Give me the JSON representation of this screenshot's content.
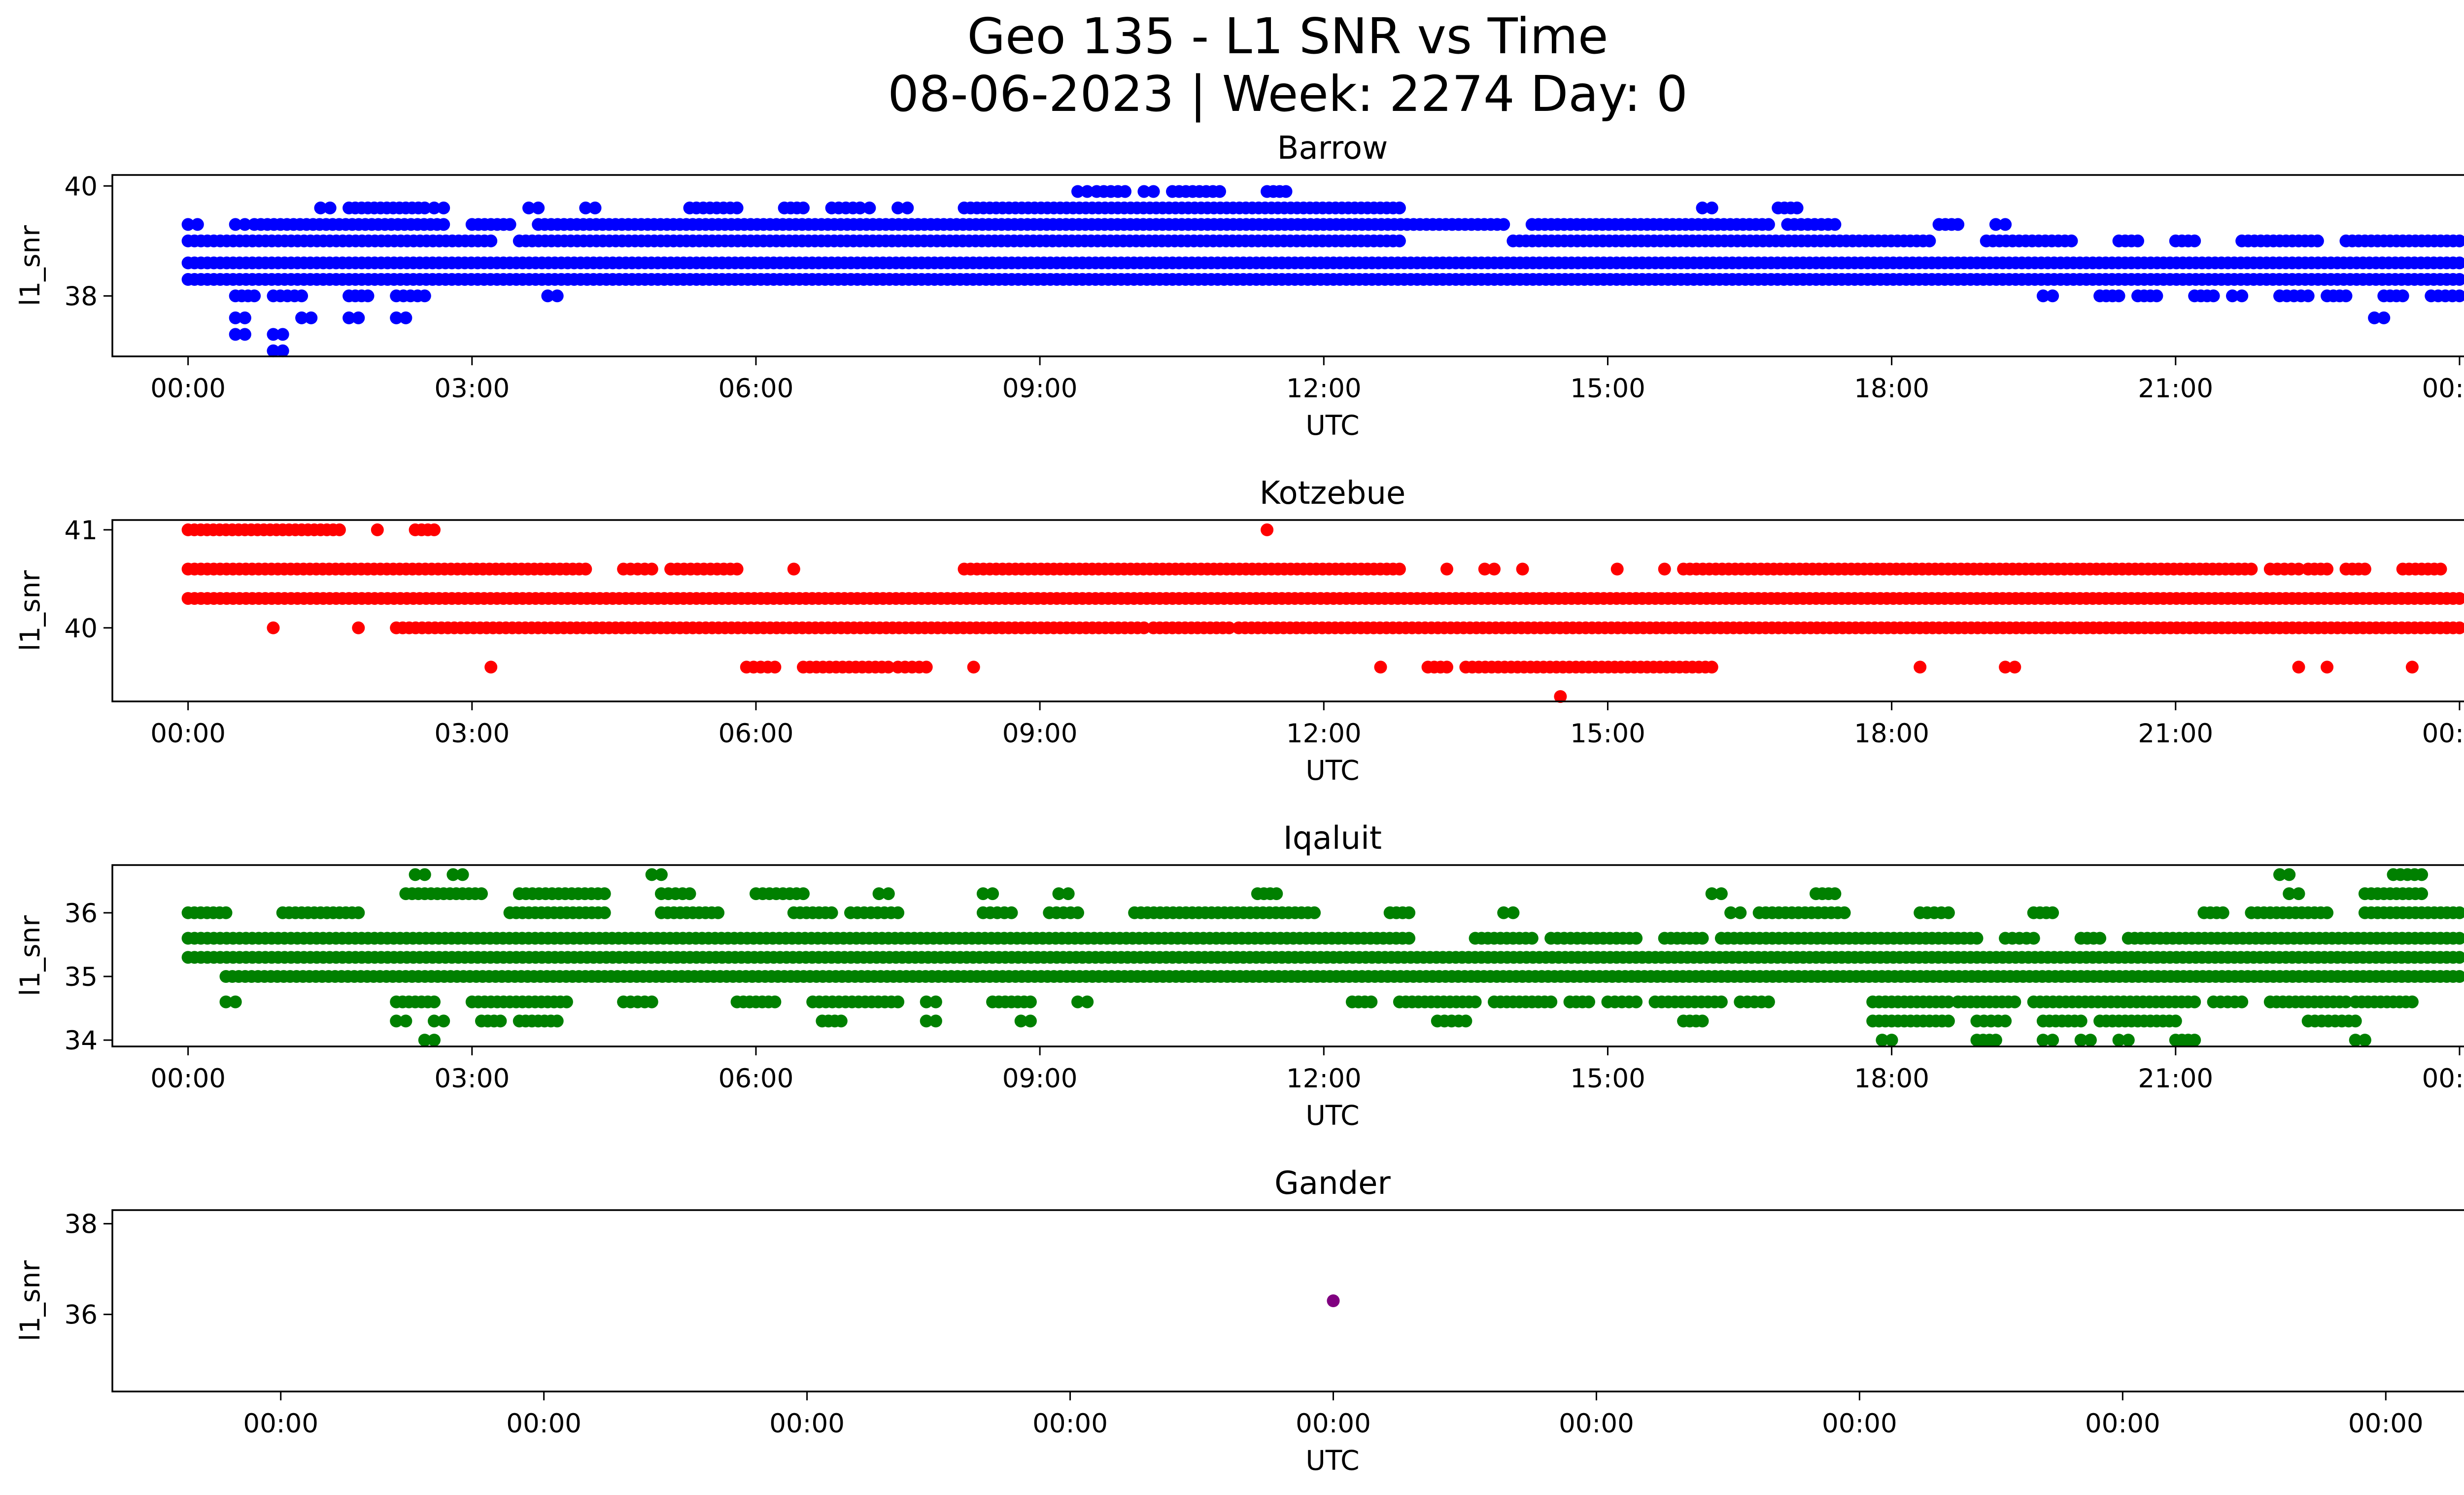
{
  "figure": {
    "title_line1": "Geo 135 - L1 SNR vs Time",
    "title_line2": "08-06-2023 | Week: 2274 Day: 0"
  },
  "chart_data": [
    {
      "type": "scatter",
      "title": "Barrow",
      "xlabel": "UTC",
      "ylabel": "l1_snr",
      "color": "#0000ff",
      "xlim": [
        -0.8,
        25.0
      ],
      "ylim": [
        36.9,
        40.2
      ],
      "xticks": [
        0,
        3,
        6,
        9,
        12,
        15,
        18,
        21,
        24
      ],
      "xticklabels": [
        "00:00",
        "03:00",
        "06:00",
        "09:00",
        "12:00",
        "15:00",
        "18:00",
        "21:00",
        "00:00"
      ],
      "yticks": [
        38,
        40
      ],
      "yticklabels": [
        "38",
        "40"
      ],
      "series": [
        {
          "y": 38.3,
          "segments": [
            [
              0.0,
              24.0
            ]
          ]
        },
        {
          "y": 38.6,
          "segments": [
            [
              0.0,
              24.0
            ]
          ]
        },
        {
          "y": 39.0,
          "segments": [
            [
              0.0,
              3.2
            ],
            [
              3.5,
              12.8
            ],
            [
              14.0,
              18.4
            ],
            [
              19.0,
              19.9
            ],
            [
              20.4,
              20.6
            ],
            [
              21.0,
              21.2
            ],
            [
              21.7,
              22.5
            ],
            [
              22.8,
              24.0
            ]
          ]
        },
        {
          "y": 38.0,
          "segments": [
            [
              0.5,
              0.7
            ],
            [
              0.9,
              1.2
            ],
            [
              1.7,
              1.9
            ],
            [
              2.2,
              2.5
            ],
            [
              3.8,
              3.9
            ],
            [
              19.6,
              19.7
            ],
            [
              20.2,
              20.4
            ],
            [
              20.6,
              20.8
            ],
            [
              21.2,
              21.4
            ],
            [
              21.6,
              21.7
            ],
            [
              22.1,
              22.4
            ],
            [
              22.6,
              22.8
            ],
            [
              23.2,
              23.4
            ],
            [
              23.7,
              24.0
            ]
          ]
        },
        {
          "y": 39.3,
          "segments": [
            [
              0.0,
              0.1
            ],
            [
              0.5,
              0.6
            ],
            [
              0.7,
              2.7
            ],
            [
              3.0,
              3.4
            ],
            [
              3.7,
              13.9
            ],
            [
              14.2,
              16.7
            ],
            [
              16.9,
              17.4
            ],
            [
              18.5,
              18.7
            ],
            [
              19.1,
              19.2
            ]
          ]
        },
        {
          "y": 39.6,
          "segments": [
            [
              1.4,
              1.5
            ],
            [
              1.7,
              2.5
            ],
            [
              2.6,
              2.7
            ],
            [
              3.6,
              3.7
            ],
            [
              4.2,
              4.3
            ],
            [
              5.3,
              5.8
            ],
            [
              6.3,
              6.5
            ],
            [
              6.8,
              7.1
            ],
            [
              7.1,
              7.2
            ],
            [
              7.5,
              7.6
            ],
            [
              8.2,
              12.8
            ],
            [
              16.0,
              16.1
            ],
            [
              16.8,
              17.0
            ]
          ]
        },
        {
          "y": 39.9,
          "segments": [
            [
              9.4,
              9.5
            ],
            [
              9.6,
              9.9
            ],
            [
              10.1,
              10.2
            ],
            [
              10.4,
              10.9
            ],
            [
              11.4,
              11.6
            ]
          ]
        },
        {
          "y": 37.6,
          "segments": [
            [
              0.5,
              0.6
            ],
            [
              1.2,
              1.3
            ],
            [
              1.7,
              1.8
            ],
            [
              2.2,
              2.3
            ],
            [
              23.1,
              23.2
            ]
          ]
        },
        {
          "y": 37.3,
          "segments": [
            [
              0.5,
              0.6
            ],
            [
              0.9,
              1.0
            ]
          ]
        },
        {
          "y": 37.0,
          "segments": [
            [
              0.9,
              1.0
            ]
          ]
        }
      ]
    },
    {
      "type": "scatter",
      "title": "Kotzebue",
      "xlabel": "UTC",
      "ylabel": "l1_snr",
      "color": "#ff0000",
      "xlim": [
        -0.8,
        25.0
      ],
      "ylim": [
        39.25,
        41.1
      ],
      "xticks": [
        0,
        3,
        6,
        9,
        12,
        15,
        18,
        21,
        24
      ],
      "xticklabels": [
        "00:00",
        "03:00",
        "06:00",
        "09:00",
        "12:00",
        "15:00",
        "18:00",
        "21:00",
        "00:00"
      ],
      "yticks": [
        40,
        41
      ],
      "yticklabels": [
        "40",
        "41"
      ],
      "series": [
        {
          "y": 40.3,
          "segments": [
            [
              0.0,
              24.0
            ]
          ]
        },
        {
          "y": 40.0,
          "segments": [
            [
              2.2,
              10.1
            ],
            [
              10.2,
              11.0
            ],
            [
              11.1,
              24.0
            ],
            [
              0.9,
              0.9
            ],
            [
              1.8,
              1.8
            ]
          ]
        },
        {
          "y": 40.6,
          "segments": [
            [
              0.0,
              4.2
            ],
            [
              4.6,
              4.9
            ],
            [
              5.1,
              5.8
            ],
            [
              6.4,
              6.4
            ],
            [
              8.2,
              12.8
            ],
            [
              13.3,
              13.3
            ],
            [
              13.7,
              13.8
            ],
            [
              14.1,
              14.1
            ],
            [
              15.1,
              15.1
            ],
            [
              15.6,
              15.6
            ],
            [
              15.8,
              21.8
            ],
            [
              22.0,
              22.3
            ],
            [
              22.4,
              22.6
            ],
            [
              22.8,
              23.0
            ],
            [
              23.4,
              23.8
            ]
          ]
        },
        {
          "y": 41.0,
          "segments": [
            [
              0.0,
              1.6
            ],
            [
              2.0,
              2.0
            ],
            [
              2.4,
              2.6
            ],
            [
              11.4,
              11.4
            ]
          ]
        },
        {
          "y": 39.6,
          "segments": [
            [
              3.2,
              3.2
            ],
            [
              5.9,
              6.2
            ],
            [
              6.5,
              7.4
            ],
            [
              7.5,
              7.8
            ],
            [
              8.3,
              8.3
            ],
            [
              12.6,
              12.6
            ],
            [
              13.1,
              13.3
            ],
            [
              13.5,
              16.1
            ],
            [
              18.3,
              18.3
            ],
            [
              19.2,
              19.3
            ],
            [
              22.3,
              22.3
            ],
            [
              22.6,
              22.6
            ],
            [
              23.5,
              23.5
            ]
          ]
        },
        {
          "y": 39.3,
          "segments": [
            [
              14.5,
              14.5
            ]
          ]
        }
      ]
    },
    {
      "type": "scatter",
      "title": "Iqaluit",
      "xlabel": "UTC",
      "ylabel": "l1_snr",
      "color": "#008000",
      "xlim": [
        -0.8,
        25.0
      ],
      "ylim": [
        33.9,
        36.75
      ],
      "xticks": [
        0,
        3,
        6,
        9,
        12,
        15,
        18,
        21,
        24
      ],
      "xticklabels": [
        "00:00",
        "03:00",
        "06:00",
        "09:00",
        "12:00",
        "15:00",
        "18:00",
        "21:00",
        "00:00"
      ],
      "yticks": [
        34,
        35,
        36
      ],
      "yticklabels": [
        "34",
        "35",
        "36"
      ],
      "series": [
        {
          "y": 35.3,
          "segments": [
            [
              0.0,
              24.0
            ]
          ]
        },
        {
          "y": 35.6,
          "segments": [
            [
              0.0,
              12.9
            ],
            [
              13.6,
              14.2
            ],
            [
              14.4,
              15.3
            ],
            [
              15.6,
              16.0
            ],
            [
              16.2,
              18.9
            ],
            [
              19.2,
              19.5
            ],
            [
              20.0,
              20.2
            ],
            [
              20.5,
              24.0
            ]
          ]
        },
        {
          "y": 35.0,
          "segments": [
            [
              0.4,
              24.0
            ]
          ]
        },
        {
          "y": 36.0,
          "segments": [
            [
              0.0,
              0.4
            ],
            [
              1.0,
              1.8
            ],
            [
              3.4,
              4.4
            ],
            [
              5.0,
              5.6
            ],
            [
              6.4,
              6.8
            ],
            [
              7.0,
              7.5
            ],
            [
              8.4,
              8.7
            ],
            [
              9.1,
              9.4
            ],
            [
              10.0,
              11.9
            ],
            [
              12.7,
              12.9
            ],
            [
              13.9,
              14.0
            ],
            [
              16.3,
              16.4
            ],
            [
              16.6,
              17.5
            ],
            [
              18.3,
              18.6
            ],
            [
              19.5,
              19.7
            ],
            [
              21.3,
              21.5
            ],
            [
              21.8,
              22.6
            ],
            [
              23.0,
              24.0
            ]
          ]
        },
        {
          "y": 36.3,
          "segments": [
            [
              2.3,
              3.1
            ],
            [
              3.5,
              4.4
            ],
            [
              5.0,
              5.3
            ],
            [
              6.0,
              6.5
            ],
            [
              7.3,
              7.4
            ],
            [
              8.4,
              8.5
            ],
            [
              9.2,
              9.3
            ],
            [
              11.3,
              11.5
            ],
            [
              16.1,
              16.2
            ],
            [
              17.2,
              17.4
            ],
            [
              22.2,
              22.3
            ],
            [
              23.0,
              23.6
            ]
          ]
        },
        {
          "y": 36.6,
          "segments": [
            [
              2.4,
              2.5
            ],
            [
              2.8,
              2.9
            ],
            [
              4.9,
              5.0
            ],
            [
              22.1,
              22.2
            ],
            [
              23.3,
              23.6
            ]
          ]
        },
        {
          "y": 34.6,
          "segments": [
            [
              0.4,
              0.5
            ],
            [
              2.2,
              2.6
            ],
            [
              3.0,
              4.0
            ],
            [
              4.6,
              4.9
            ],
            [
              5.8,
              6.2
            ],
            [
              6.6,
              7.5
            ],
            [
              7.8,
              7.9
            ],
            [
              8.5,
              8.9
            ],
            [
              9.4,
              9.5
            ],
            [
              12.3,
              12.5
            ],
            [
              12.8,
              13.6
            ],
            [
              13.8,
              14.4
            ],
            [
              14.6,
              14.8
            ],
            [
              15.0,
              15.3
            ],
            [
              15.5,
              16.2
            ],
            [
              16.4,
              16.7
            ],
            [
              17.8,
              18.6
            ],
            [
              18.7,
              19.3
            ],
            [
              19.5,
              21.2
            ],
            [
              21.4,
              21.7
            ],
            [
              22.0,
              22.8
            ],
            [
              22.9,
              23.5
            ]
          ]
        },
        {
          "y": 34.3,
          "segments": [
            [
              2.2,
              2.3
            ],
            [
              2.6,
              2.7
            ],
            [
              3.1,
              3.3
            ],
            [
              3.5,
              3.9
            ],
            [
              6.7,
              6.9
            ],
            [
              7.8,
              7.9
            ],
            [
              8.8,
              8.9
            ],
            [
              13.2,
              13.5
            ],
            [
              15.8,
              16.0
            ],
            [
              17.8,
              18.6
            ],
            [
              18.9,
              19.2
            ],
            [
              19.6,
              20.0
            ],
            [
              20.2,
              21.0
            ],
            [
              22.4,
              22.9
            ]
          ]
        },
        {
          "y": 34.0,
          "segments": [
            [
              2.5,
              2.6
            ],
            [
              17.9,
              18.0
            ],
            [
              18.9,
              19.1
            ],
            [
              19.6,
              19.7
            ],
            [
              20.0,
              20.1
            ],
            [
              20.4,
              20.5
            ],
            [
              21.0,
              21.2
            ],
            [
              22.9,
              23.0
            ]
          ]
        }
      ]
    },
    {
      "type": "scatter",
      "title": "Gander",
      "xlabel": "UTC",
      "ylabel": "l1_snr",
      "color": "#800080",
      "xlim": [
        -0.058,
        0.058
      ],
      "ylim": [
        34.3,
        38.3
      ],
      "xticks": [
        -0.05,
        -0.0375,
        -0.025,
        -0.0125,
        0.0,
        0.0125,
        0.025,
        0.0375,
        0.05
      ],
      "xticklabels": [
        "00:00",
        "00:00",
        "00:00",
        "00:00",
        "00:00",
        "00:00",
        "00:00",
        "00:00",
        "00:00"
      ],
      "yticks": [
        36,
        38
      ],
      "yticklabels": [
        "36",
        "38"
      ],
      "series": [
        {
          "y": 36.3,
          "segments": [
            [
              0.0,
              0.0
            ]
          ]
        }
      ]
    }
  ]
}
